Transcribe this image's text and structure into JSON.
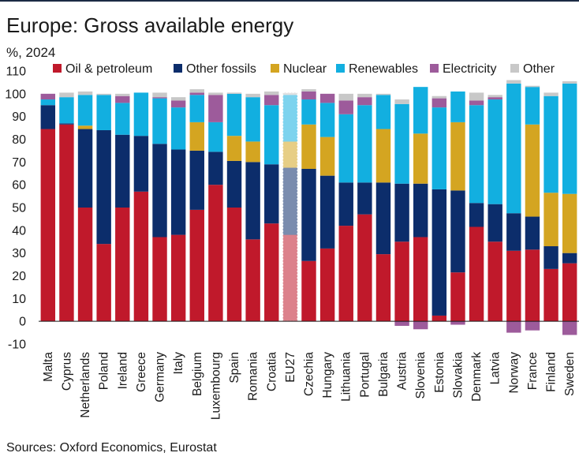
{
  "header": {
    "title": "Europe: Gross available energy",
    "unit": "%, 2024"
  },
  "footer": {
    "source": "Sources: Oxford Economics, Eurostat"
  },
  "colors": {
    "oil": "#c0192b",
    "fossils": "#0c2d6b",
    "nuclear": "#d4a521",
    "renewables": "#12afe0",
    "electricity": "#9d5b9b",
    "other": "#c8c8c8"
  },
  "chart_data": {
    "type": "bar",
    "stacked": true,
    "title": "Europe: Gross available energy",
    "ylabel": "%, 2024",
    "ylim": [
      -10,
      110
    ],
    "yticks": [
      -10,
      0,
      10,
      20,
      30,
      40,
      50,
      60,
      70,
      80,
      90,
      100,
      110
    ],
    "legend_position": "top",
    "categories": [
      "Malta",
      "Cyprus",
      "Netherlands",
      "Poland",
      "Ireland",
      "Greece",
      "Germany",
      "Italy",
      "Belgium",
      "Luxembourg",
      "Spain",
      "Romania",
      "Croatia",
      "EU27",
      "Czechia",
      "Hungary",
      "Lithuania",
      "Portugal",
      "Bulgaria",
      "Austria",
      "Slovenia",
      "Estonia",
      "Slovakia",
      "Denmark",
      "Latvia",
      "Norway",
      "France",
      "Finland",
      "Sweden"
    ],
    "highlight_category": "EU27",
    "series": [
      {
        "key": "oil",
        "name": "Oil & petroleum",
        "values": [
          84.5,
          86.5,
          50,
          34,
          50,
          57,
          37,
          38,
          49,
          60,
          50,
          36,
          43,
          38,
          26.5,
          32,
          42,
          47,
          29.5,
          35,
          37,
          2.5,
          21.5,
          41.5,
          35,
          31,
          31.5,
          23,
          25.5
        ]
      },
      {
        "key": "fossils",
        "name": "Other fossils",
        "values": [
          10.5,
          0.5,
          34.5,
          50,
          32,
          24.5,
          41,
          37.5,
          26,
          14.5,
          20.5,
          34,
          26,
          29.5,
          40.5,
          32,
          19,
          14,
          31.5,
          25.5,
          23.5,
          55.5,
          36,
          10.5,
          16.5,
          16.5,
          14.5,
          10,
          4.5
        ]
      },
      {
        "key": "nuclear",
        "name": "Nuclear",
        "values": [
          0,
          0,
          1.5,
          0,
          0,
          0,
          0,
          0,
          12.5,
          0,
          11,
          9,
          0,
          11.5,
          19.5,
          17,
          0,
          0,
          23.5,
          0,
          22,
          0,
          30,
          0,
          0,
          0,
          40.5,
          23.5,
          26
        ]
      },
      {
        "key": "renewables",
        "name": "Renewables",
        "values": [
          2.5,
          11.5,
          13.5,
          15.5,
          14,
          19,
          20,
          18.5,
          12,
          13,
          18.5,
          19.5,
          26,
          20.5,
          11,
          15,
          30,
          34,
          15,
          35,
          20.5,
          36,
          13.5,
          43,
          46,
          57,
          16.5,
          42.5,
          48.5
        ]
      },
      {
        "key": "electricity",
        "name": "Electricity",
        "values": [
          2.5,
          0,
          0,
          0,
          3,
          0,
          0.5,
          3,
          1,
          12,
          0,
          0,
          4.5,
          0,
          3.5,
          4,
          6,
          3.5,
          0,
          -2,
          -3.5,
          4,
          -1.5,
          2,
          1,
          -5,
          -4,
          0,
          -6
        ]
      },
      {
        "key": "other",
        "name": "Other",
        "values": [
          0,
          2,
          1.5,
          0.5,
          1,
          0,
          2,
          1.5,
          1.5,
          1,
          0.5,
          1.5,
          1.5,
          1,
          1,
          0,
          3,
          1.5,
          0.5,
          2,
          0,
          1,
          0,
          3.5,
          1,
          1.5,
          0.5,
          1.5,
          1
        ]
      }
    ]
  }
}
